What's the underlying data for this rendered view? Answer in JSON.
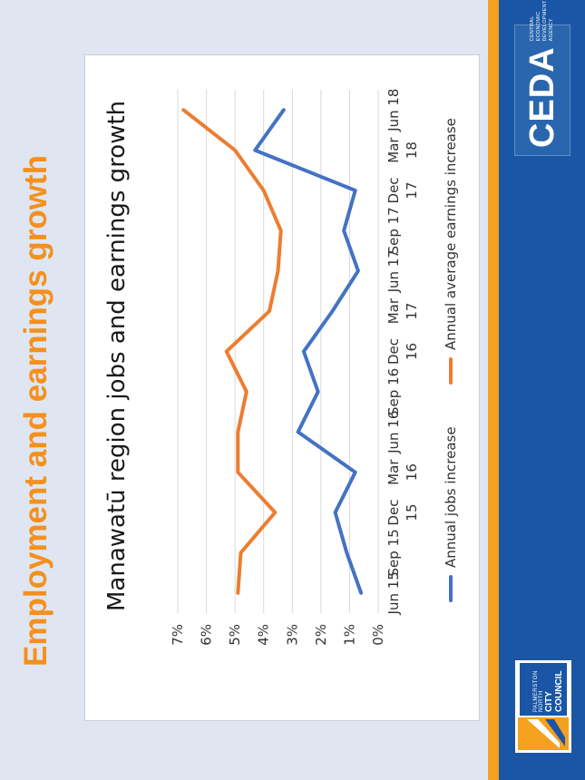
{
  "slide": {
    "title_part1": "Employment and ",
    "title_part2": "earnings growth",
    "footer_left_logo": {
      "line1": "PALMERSTON NORTH",
      "line2": "CITY COUNCIL"
    },
    "footer_right_logo": {
      "wordmark": "CEDA",
      "tagline": "CENTRAL ECONOMIC DEVELOPMENT AGENCY"
    }
  },
  "colors": {
    "title_primary": "#f4901e",
    "jobs_series": "#4472c4",
    "earnings_series": "#ed7d31",
    "footer_blue": "#1a56a5",
    "accent_orange": "#f4a11f"
  },
  "chart_data": {
    "type": "line",
    "title": "Manawatū region jobs and earnings growth",
    "categories": [
      [
        "Jun 15"
      ],
      [
        "Sep 15"
      ],
      [
        "Dec",
        "15"
      ],
      [
        "Mar",
        "16"
      ],
      [
        "Jun 16"
      ],
      [
        "Sep 16"
      ],
      [
        "Dec",
        "16"
      ],
      [
        "Mar",
        "17"
      ],
      [
        "Jun 17"
      ],
      [
        "Sep 17"
      ],
      [
        "Dec",
        "17"
      ],
      [
        "Mar",
        "18"
      ],
      [
        "Jun 18"
      ]
    ],
    "yticks": [
      "0%",
      "1%",
      "2%",
      "3%",
      "4%",
      "5%",
      "6%",
      "7%"
    ],
    "ylim": [
      0,
      7
    ],
    "grid": true,
    "legend_position": "bottom",
    "series": [
      {
        "name": "Annual jobs increase",
        "color": "#4472c4",
        "values": [
          0.6,
          1.1,
          1.5,
          0.8,
          2.8,
          2.1,
          2.6,
          1.6,
          0.7,
          1.2,
          0.8,
          4.3,
          3.3
        ]
      },
      {
        "name": "Annual average earnings increase",
        "color": "#ed7d31",
        "values": [
          4.9,
          4.8,
          3.6,
          4.9,
          4.9,
          4.6,
          5.3,
          3.8,
          3.5,
          3.4,
          4.0,
          5.0,
          6.8
        ]
      }
    ]
  }
}
